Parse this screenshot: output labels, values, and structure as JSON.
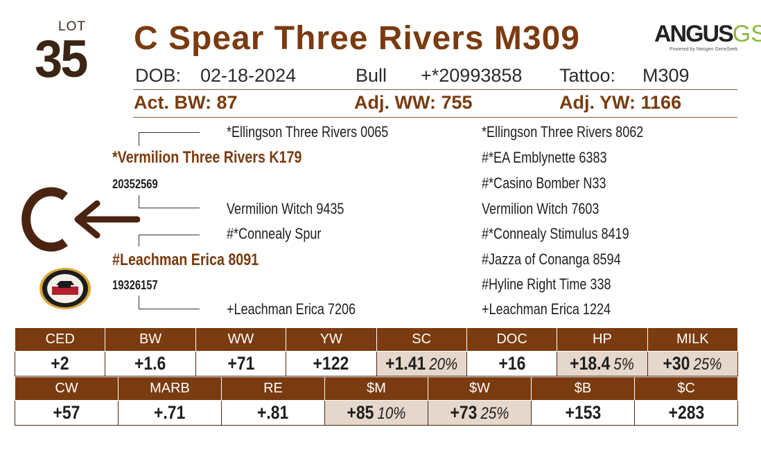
{
  "lot": {
    "label": "LOT",
    "number": "35"
  },
  "title": "C Spear Three Rivers M309",
  "logo": {
    "main": "ANGUS",
    "suffix": "GS",
    "sub": "Powered by Neogen GeneSeek"
  },
  "info": {
    "dob_label": "DOB:",
    "dob": "02-18-2024",
    "sex": "Bull",
    "reg": "+*20993858",
    "tattoo_label": "Tattoo:",
    "tattoo": "M309"
  },
  "weights": {
    "bw": "Act. BW: 87",
    "ww": "Adj. WW: 755",
    "yw": "Adj. YW: 1166"
  },
  "pedigree": {
    "sire": {
      "name": "*Vermilion Three Rivers K179",
      "reg": "20352569"
    },
    "dam": {
      "name": "#Leachman Erica 8091",
      "reg": "19326157"
    },
    "sire_sire": "*Ellingson Three Rivers 0065",
    "sire_dam": "Vermilion Witch 9435",
    "dam_sire": "#*Connealy Spur",
    "dam_dam": "+Leachman Erica 7206",
    "great": [
      "*Ellingson Three Rivers 8062",
      "#*EA Emblynette 6383",
      "#*Casino Bomber N33",
      "Vermilion Witch 7603",
      "#*Connealy Stimulus 8419",
      "#Jazza of Conanga 8594",
      "#Hyline Right Time 338",
      "+Leachman Erica 1224"
    ]
  },
  "brand": {
    "letter": "C",
    "icon": "left-arrow-icon"
  },
  "seal_icon": "certified-seal-icon",
  "colors": {
    "accent": "#7a3b10",
    "header_bg": "#7a3b10",
    "highlight": "#e5d7cb"
  },
  "epd_row1": [
    {
      "label": "CED",
      "value": "+2",
      "pct": ""
    },
    {
      "label": "BW",
      "value": "+1.6",
      "pct": ""
    },
    {
      "label": "WW",
      "value": "+71",
      "pct": ""
    },
    {
      "label": "YW",
      "value": "+122",
      "pct": ""
    },
    {
      "label": "SC",
      "value": "+1.41",
      "pct": "20%"
    },
    {
      "label": "DOC",
      "value": "+16",
      "pct": ""
    },
    {
      "label": "HP",
      "value": "+18.4",
      "pct": "5%"
    },
    {
      "label": "MILK",
      "value": "+30",
      "pct": "25%"
    }
  ],
  "epd_row2": [
    {
      "label": "CW",
      "value": "+57",
      "pct": ""
    },
    {
      "label": "MARB",
      "value": "+.71",
      "pct": ""
    },
    {
      "label": "RE",
      "value": "+.81",
      "pct": ""
    },
    {
      "label": "$M",
      "value": "+85",
      "pct": "10%"
    },
    {
      "label": "$W",
      "value": "+73",
      "pct": "25%"
    },
    {
      "label": "$B",
      "value": "+153",
      "pct": ""
    },
    {
      "label": "$C",
      "value": "+283",
      "pct": ""
    }
  ]
}
